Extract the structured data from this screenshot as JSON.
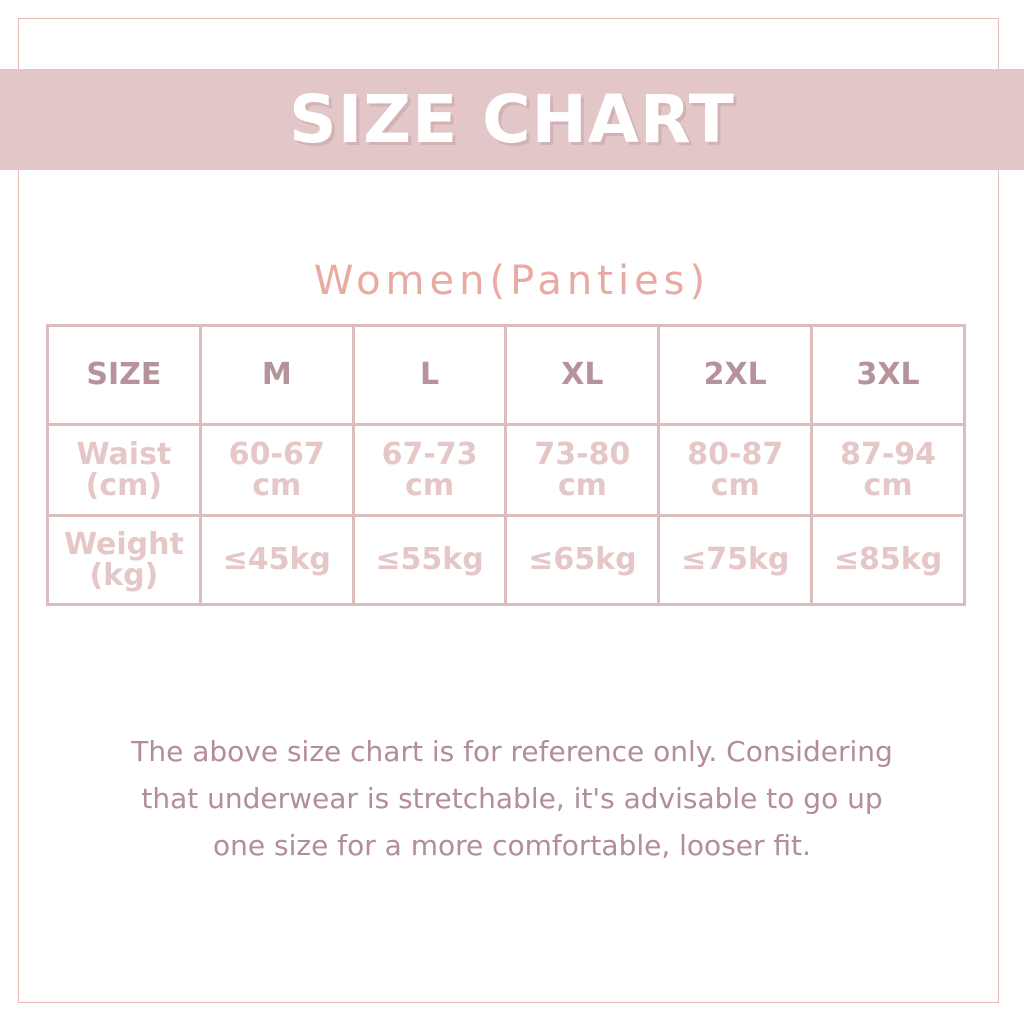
{
  "title": "SIZE CHART",
  "subtitle": "Women(Panties)",
  "table": {
    "header": [
      "SIZE",
      "M",
      "L",
      "XL",
      "2XL",
      "3XL"
    ],
    "rows": [
      {
        "label": [
          "Waist",
          "(cm)"
        ],
        "values": [
          [
            "60-67",
            "cm"
          ],
          [
            "67-73",
            "cm"
          ],
          [
            "73-80",
            "cm"
          ],
          [
            "80-87",
            "cm"
          ],
          [
            "87-94",
            "cm"
          ]
        ]
      },
      {
        "label": [
          "Weight",
          "(kg)"
        ],
        "values": [
          "≤45kg",
          "≤55kg",
          "≤65kg",
          "≤75kg",
          "≤85kg"
        ]
      }
    ]
  },
  "note": [
    "The above size chart is for reference only. Considering",
    "that underwear is stretchable, it's advisable to go up",
    "one size for a more comfortable, looser fit."
  ],
  "colors": {
    "banner": "#e3c6c7",
    "subtitle": "#eaaaa4",
    "header_text": "#b6939a",
    "cell_text": "#e5c7c7",
    "note_text": "#b38e94",
    "border": "#dcbdbe"
  }
}
